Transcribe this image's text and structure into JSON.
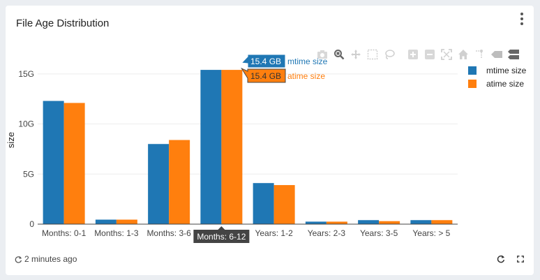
{
  "card": {
    "title": "File Age Distribution",
    "updated": "2 minutes ago"
  },
  "modebar": {
    "icons": [
      "camera-icon",
      "zoom-icon",
      "pan-icon",
      "box-select-icon",
      "lasso-select-icon",
      "zoom-in-icon",
      "zoom-out-icon",
      "autoscale-icon",
      "home-icon",
      "spike-lines-icon",
      "hover-closest-icon",
      "hover-compare-icon"
    ]
  },
  "colors": {
    "mtime": "#1f77b4",
    "atime": "#ff7f0e",
    "grid": "#eeeeee",
    "axis": "#444444"
  },
  "chart_data": {
    "type": "bar",
    "title": "",
    "xlabel": "",
    "ylabel": "size",
    "ylim": [
      0,
      16.8
    ],
    "yticks": [
      0,
      5,
      10,
      15
    ],
    "ytick_labels": [
      "0",
      "5G",
      "10G",
      "15G"
    ],
    "categories": [
      "Months: 0-1",
      "Months: 1-3",
      "Months: 3-6",
      "Months: 6-12",
      "Years: 1-2",
      "Years: 2-3",
      "Years: 3-5",
      "Years: > 5"
    ],
    "series": [
      {
        "name": "mtime size",
        "color": "#1f77b4",
        "values": [
          12.3,
          0.45,
          8.0,
          15.4,
          4.1,
          0.25,
          0.4,
          0.4
        ]
      },
      {
        "name": "atime size",
        "color": "#ff7f0e",
        "values": [
          12.1,
          0.45,
          8.4,
          15.4,
          3.9,
          0.25,
          0.3,
          0.4
        ]
      }
    ],
    "legend": "right",
    "grid": true,
    "hover": {
      "category": "Months: 6-12",
      "labels": [
        {
          "value": "15.4 GB",
          "name": "mtime size"
        },
        {
          "value": "15.4 GB",
          "name": "atime size"
        }
      ]
    }
  }
}
